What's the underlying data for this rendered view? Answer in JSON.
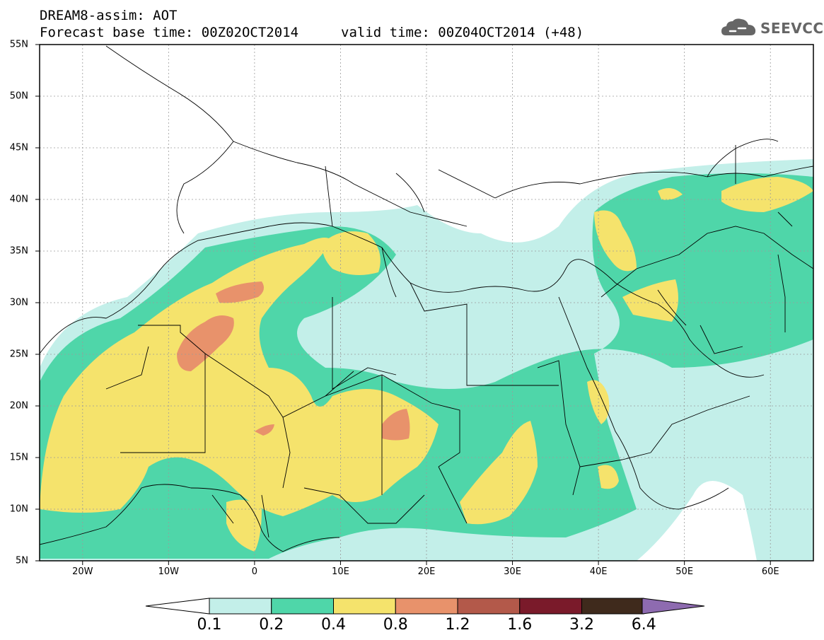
{
  "header": {
    "title_line1": "DREAM8-assim: AOT",
    "title_line2": "Forecast base time: 00Z02OCT2014",
    "valid_time": "valid time: 00Z04OCT2014 (+48)",
    "logo_text": "SEEVCCC"
  },
  "axes": {
    "lat_labels": [
      "55N",
      "50N",
      "45N",
      "40N",
      "35N",
      "30N",
      "25N",
      "20N",
      "15N",
      "10N",
      "5N"
    ],
    "lon_labels": [
      "20W",
      "10W",
      "0",
      "10E",
      "20E",
      "30E",
      "40E",
      "50E",
      "60E"
    ]
  },
  "colorbar": {
    "labels": [
      "0.1",
      "0.2",
      "0.4",
      "0.8",
      "1.2",
      "1.6",
      "3.2",
      "6.4"
    ],
    "colors": [
      "#c3efe9",
      "#4fd6a9",
      "#f5e36c",
      "#e8926b",
      "#b3594a",
      "#7a1a2a",
      "#3f2a1c",
      "#8e6bb0"
    ]
  },
  "colors": {
    "frame": "#000000",
    "grid": "#9a9a9a",
    "land_lines": "#000000"
  }
}
